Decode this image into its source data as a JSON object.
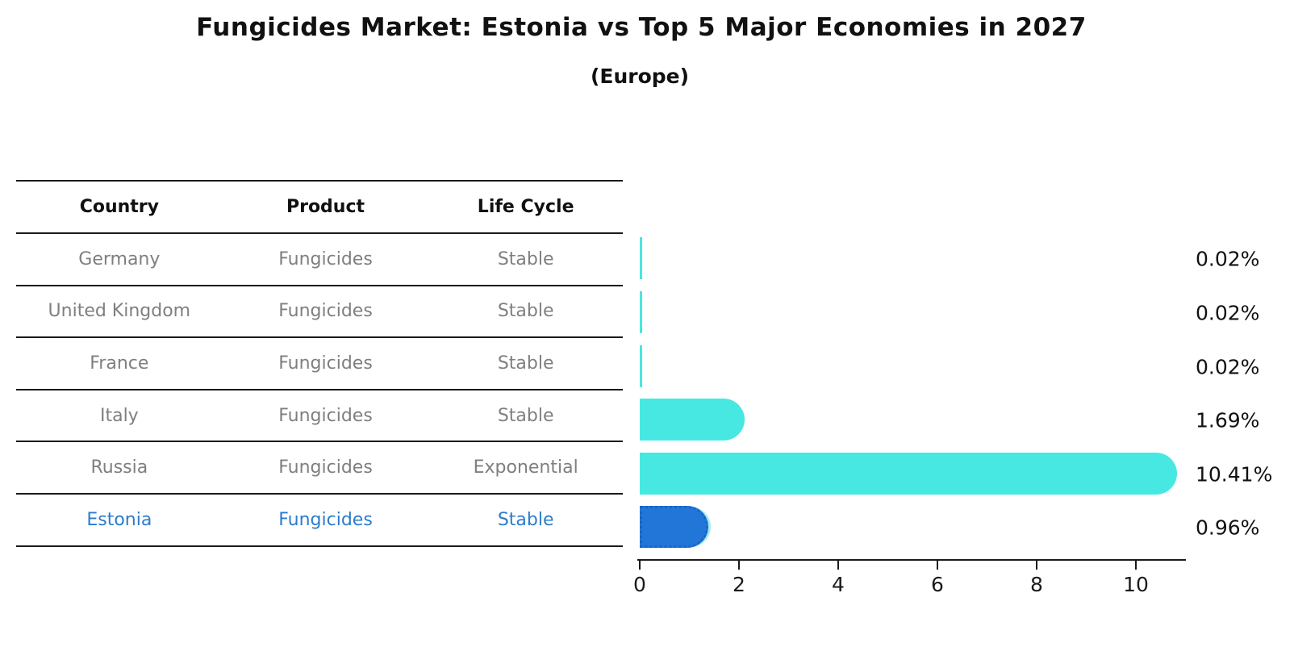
{
  "title": "Fungicides Market: Estonia vs Top 5 Major Economies in 2027",
  "subtitle": "(Europe)",
  "table": {
    "headers": [
      "Country",
      "Product",
      "Life Cycle"
    ],
    "rows": [
      {
        "cells": [
          "Germany",
          "Fungicides",
          "Stable"
        ],
        "highlight": false
      },
      {
        "cells": [
          "United Kingdom",
          "Fungicides",
          "Stable"
        ],
        "highlight": false
      },
      {
        "cells": [
          "France",
          "Fungicides",
          "Stable"
        ],
        "highlight": false
      },
      {
        "cells": [
          "Italy",
          "Fungicides",
          "Stable"
        ],
        "highlight": false
      },
      {
        "cells": [
          "Russia",
          "Fungicides",
          "Exponential"
        ],
        "highlight": false
      },
      {
        "cells": [
          "Estonia",
          "Fungicides",
          "Stable"
        ],
        "highlight": true
      }
    ]
  },
  "chart_data": {
    "type": "bar",
    "orientation": "horizontal",
    "title": "Fungicides Market: Estonia vs Top 5 Major Economies in 2027",
    "subtitle": "(Europe)",
    "categories": [
      "Germany",
      "United Kingdom",
      "France",
      "Italy",
      "Russia",
      "Estonia"
    ],
    "values": [
      0.02,
      0.02,
      0.02,
      1.69,
      10.41,
      0.96
    ],
    "value_labels": [
      "0.02%",
      "0.02%",
      "0.02%",
      "1.69%",
      "10.41%",
      "0.96%"
    ],
    "xlabel": "",
    "ylabel": "",
    "xlim": [
      0,
      11
    ],
    "xticks": [
      "0",
      "2",
      "4",
      "6",
      "8",
      "10"
    ],
    "xtick_values": [
      0,
      2,
      4,
      6,
      8,
      10
    ],
    "grid": false,
    "legend": null,
    "bar_color": "#48e8e2",
    "highlight_index": 5,
    "highlight_color": "#2176d8",
    "highlight_text_color": "#2b7ccd",
    "value_label_color": "#111111"
  },
  "colors": {
    "bar": "#48e8e2",
    "highlight_bar": "#2176d8",
    "highlight_text": "#2b7ccd",
    "table_text": "#7f7f7f",
    "heading_text": "#111111",
    "rule_line": "#1a1a1a"
  }
}
